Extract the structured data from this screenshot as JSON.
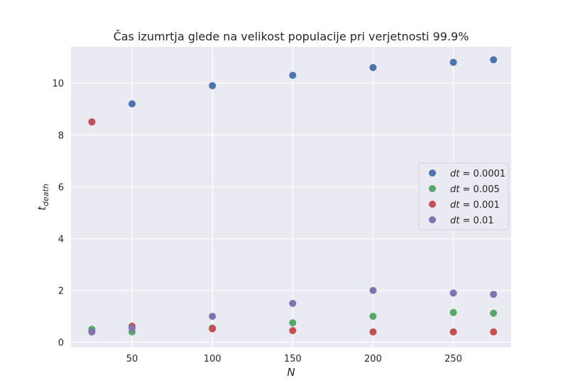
{
  "chart_data": {
    "type": "scatter",
    "title": "Čas izumrtja glede na velikost populacije pri verjetnosti 99.9%",
    "xlabel": "N",
    "ylabel_main": "t",
    "ylabel_sub": "death",
    "xlim": [
      12,
      286
    ],
    "ylim": [
      -0.2,
      11.4
    ],
    "xticks": [
      50,
      100,
      150,
      200,
      250
    ],
    "yticks": [
      0,
      2,
      4,
      6,
      8,
      10
    ],
    "grid": true,
    "legend_position": "center-right",
    "colors": {
      "background": "#EAEAF2",
      "grid": "#FFFFFF"
    },
    "series": [
      {
        "name": "dt = 0.0001",
        "legend_italic": "dt",
        "legend_value": "= 0.0001",
        "color": "#4C72B0",
        "x": [
          25,
          50,
          100,
          150,
          200,
          250,
          275
        ],
        "y": [
          8.5,
          9.2,
          9.9,
          10.3,
          10.6,
          10.8,
          10.9
        ]
      },
      {
        "name": "dt = 0.005",
        "legend_italic": "dt",
        "legend_value": "= 0.005",
        "color": "#55A868",
        "x": [
          25,
          50,
          100,
          150,
          200,
          250,
          275
        ],
        "y": [
          0.5,
          0.4,
          0.55,
          0.75,
          1.0,
          1.15,
          1.12
        ]
      },
      {
        "name": "dt = 0.001",
        "legend_italic": "dt",
        "legend_value": "= 0.001",
        "color": "#C44E52",
        "x": [
          25,
          50,
          100,
          150,
          200,
          250,
          275
        ],
        "y": [
          8.5,
          0.62,
          0.52,
          0.45,
          0.4,
          0.4,
          0.4
        ]
      },
      {
        "name": "dt = 0.01",
        "legend_italic": "dt",
        "legend_value": "= 0.01",
        "color": "#8172B2",
        "x": [
          25,
          50,
          100,
          150,
          200,
          250,
          275
        ],
        "y": [
          0.4,
          0.55,
          1.0,
          1.5,
          2.0,
          1.9,
          1.85
        ]
      }
    ]
  }
}
